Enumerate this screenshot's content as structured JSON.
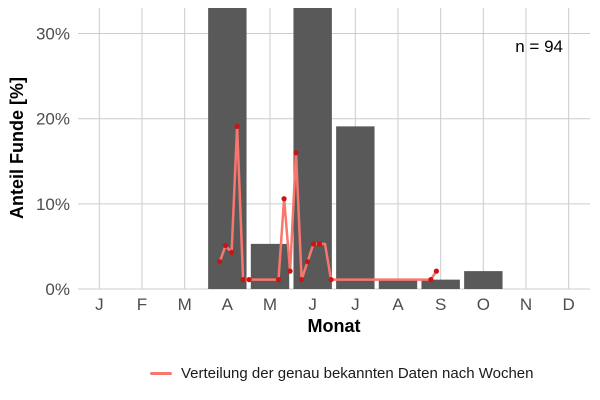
{
  "chart_data": {
    "type": "bar",
    "xlabel": "Monat",
    "ylabel": "Anteil Funde [%]",
    "categories": [
      "J",
      "F",
      "M",
      "A",
      "M",
      "J",
      "J",
      "A",
      "S",
      "O",
      "N",
      "D"
    ],
    "values": [
      0,
      0,
      0,
      33,
      5.3,
      33,
      19.1,
      1.1,
      1.1,
      2.1,
      0,
      0
    ],
    "ylim": [
      0,
      33
    ],
    "yticks": [
      0,
      10,
      20,
      30
    ],
    "ytick_labels": [
      "0%",
      "10%",
      "20%",
      "30%"
    ],
    "grid": true,
    "annotation": "n = 94",
    "line_series": {
      "name": "Verteilung der genau bekannten Daten nach Wochen",
      "x": [
        3.82,
        3.96,
        4.1,
        4.23,
        4.37,
        4.51,
        4.65,
        4.78,
        4.92,
        5.06,
        5.2,
        5.33,
        5.47,
        5.61,
        5.74,
        5.88,
        6.02,
        6.16,
        6.29,
        6.43,
        6.57,
        6.71,
        6.84,
        6.98,
        7.12,
        7.26,
        7.39,
        7.53,
        7.67,
        7.8,
        7.94,
        8.08,
        8.22,
        8.35,
        8.49,
        8.63,
        8.77,
        8.9
      ],
      "y": [
        3.2,
        5.1,
        4.3,
        19.1,
        1.1,
        1.1,
        1.1,
        1.1,
        1.1,
        1.1,
        1.1,
        10.6,
        2.1,
        16.0,
        1.1,
        3.2,
        5.3,
        5.3,
        5.3,
        1.1,
        1.1,
        1.1,
        1.1,
        1.1,
        1.1,
        1.1,
        1.1,
        1.1,
        1.1,
        1.1,
        1.1,
        1.1,
        1.1,
        1.1,
        1.1,
        1.1,
        1.1,
        2.1
      ],
      "markers": [
        3.2,
        5.1,
        4.3,
        19.1,
        1.1,
        1.1,
        null,
        null,
        null,
        null,
        1.1,
        10.6,
        2.1,
        16.0,
        1.1,
        3.2,
        5.3,
        5.3,
        null,
        1.1,
        null,
        null,
        null,
        null,
        null,
        null,
        null,
        null,
        null,
        null,
        null,
        null,
        null,
        null,
        null,
        null,
        1.1,
        2.1
      ]
    },
    "colors": {
      "bar": "#595959",
      "line": "#f8766d",
      "marker": "#cc1414",
      "grid": "#cccccc"
    }
  }
}
